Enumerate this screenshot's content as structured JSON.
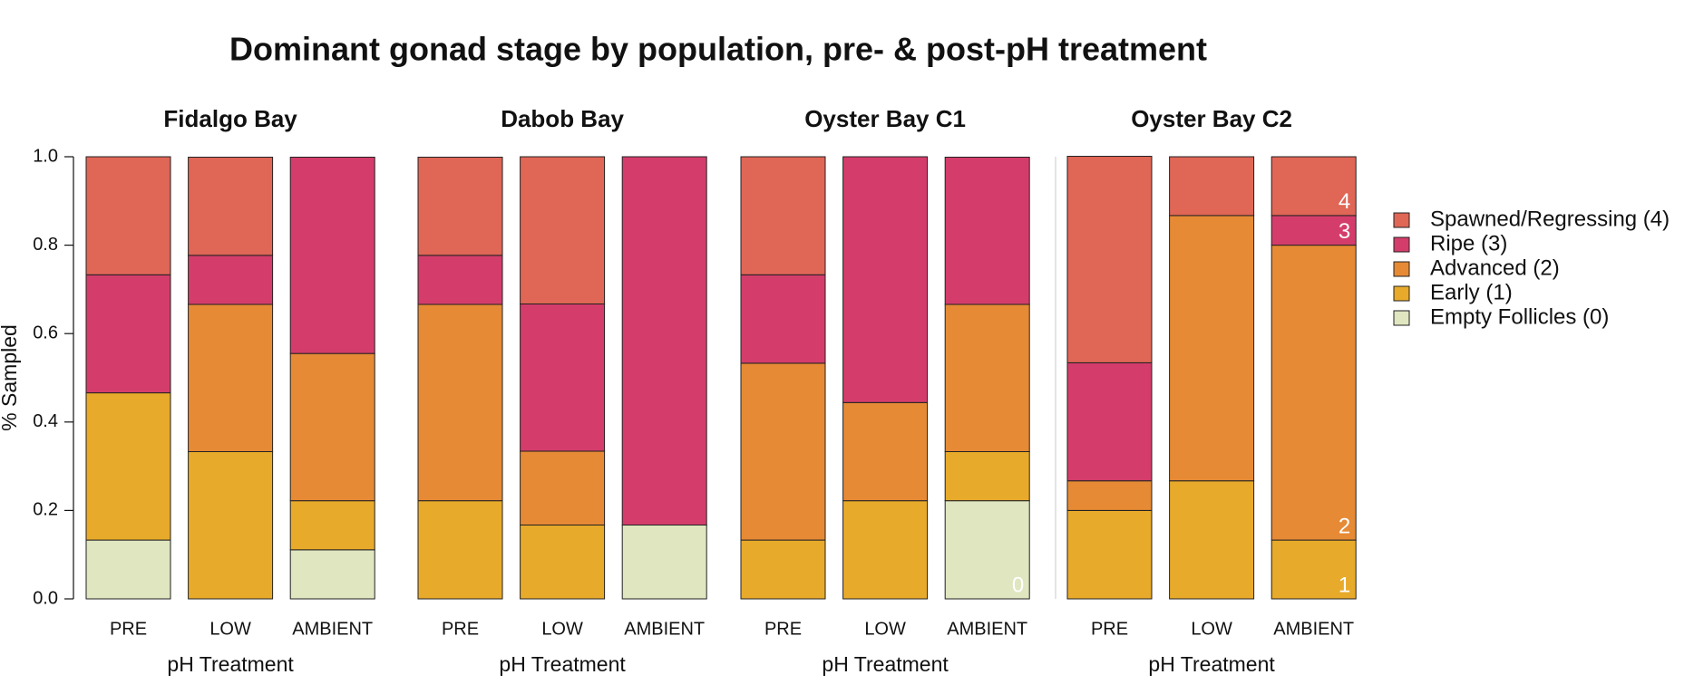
{
  "title": "Dominant gonad stage by population, pre- & post-pH treatment",
  "chart_data": [
    {
      "type": "bar",
      "stacked": true,
      "title": "Fidalgo Bay",
      "xlabel": "pH Treatment",
      "ylabel": "% Sampled",
      "categories": [
        "PRE",
        "LOW",
        "AMBIENT"
      ],
      "ylim": [
        0,
        1
      ],
      "yticks": [
        {
          "value": 0,
          "label": "0.0"
        },
        0.2,
        0.4,
        0.6,
        0.8,
        {
          "value": 1,
          "label": "1.0"
        }
      ],
      "series": [
        {
          "name": "Empty Follicles (0)",
          "color": "#dfe6c0",
          "values": [
            0.133,
            0,
            0.111
          ]
        },
        {
          "name": "Early (1)",
          "color": "#e8aa2a",
          "values": [
            0.333,
            0.333,
            0.111
          ]
        },
        {
          "name": "Advanced (2)",
          "color": "#e68a35",
          "values": [
            0,
            0.333,
            0.333
          ]
        },
        {
          "name": "Ripe (3)",
          "color": "#d43d6b",
          "values": [
            0.267,
            0.111,
            0.444
          ]
        },
        {
          "name": "Spawned/Regressing (4)",
          "color": "#e06656",
          "values": [
            0.267,
            0.222,
            0
          ]
        }
      ]
    },
    {
      "type": "bar",
      "stacked": true,
      "title": "Dabob Bay",
      "xlabel": "pH Treatment",
      "categories": [
        "PRE",
        "LOW",
        "AMBIENT"
      ],
      "ylim": [
        0,
        1
      ],
      "series": [
        {
          "name": "Empty Follicles (0)",
          "color": "#dfe6c0",
          "values": [
            0,
            0,
            0.167
          ]
        },
        {
          "name": "Early (1)",
          "color": "#e8aa2a",
          "values": [
            0.222,
            0.167,
            0
          ]
        },
        {
          "name": "Advanced (2)",
          "color": "#e68a35",
          "values": [
            0.444,
            0.167,
            0
          ]
        },
        {
          "name": "Ripe (3)",
          "color": "#d43d6b",
          "values": [
            0.111,
            0.333,
            0.833
          ]
        },
        {
          "name": "Spawned/Regressing (4)",
          "color": "#e06656",
          "values": [
            0.222,
            0.333,
            0
          ]
        }
      ]
    },
    {
      "type": "bar",
      "stacked": true,
      "title": "Oyster Bay C1",
      "xlabel": "pH Treatment",
      "categories": [
        "PRE",
        "LOW",
        "AMBIENT"
      ],
      "ylim": [
        0,
        1
      ],
      "series": [
        {
          "name": "Empty Follicles (0)",
          "color": "#dfe6c0",
          "values": [
            0,
            0,
            0.222
          ]
        },
        {
          "name": "Early (1)",
          "color": "#e8aa2a",
          "values": [
            0.133,
            0.222,
            0.111
          ]
        },
        {
          "name": "Advanced (2)",
          "color": "#e68a35",
          "values": [
            0.4,
            0.222,
            0.333
          ]
        },
        {
          "name": "Ripe (3)",
          "color": "#d43d6b",
          "values": [
            0.2,
            0.556,
            0.333
          ]
        },
        {
          "name": "Spawned/Regressing (4)",
          "color": "#e06656",
          "values": [
            0.267,
            0,
            0
          ]
        }
      ],
      "annotations": [
        {
          "text": "0",
          "category": 2,
          "series": 0
        }
      ]
    },
    {
      "type": "bar",
      "stacked": true,
      "title": "Oyster Bay C2",
      "xlabel": "pH Treatment",
      "categories": [
        "PRE",
        "LOW",
        "AMBIENT"
      ],
      "ylim": [
        0,
        1
      ],
      "series": [
        {
          "name": "Empty Follicles (0)",
          "color": "#dfe6c0",
          "values": [
            0,
            0,
            0
          ]
        },
        {
          "name": "Early (1)",
          "color": "#e8aa2a",
          "values": [
            0.2,
            0.267,
            0.133
          ]
        },
        {
          "name": "Advanced (2)",
          "color": "#e68a35",
          "values": [
            0.067,
            0.6,
            0.667
          ]
        },
        {
          "name": "Ripe (3)",
          "color": "#d43d6b",
          "values": [
            0.267,
            0,
            0.067
          ]
        },
        {
          "name": "Spawned/Regressing (4)",
          "color": "#e06656",
          "values": [
            0.467,
            0.133,
            0.133
          ]
        }
      ],
      "annotations": [
        {
          "text": "1",
          "category": 2,
          "series": 1
        },
        {
          "text": "2",
          "category": 2,
          "series": 2
        },
        {
          "text": "3",
          "category": 2,
          "series": 3
        },
        {
          "text": "4",
          "category": 2,
          "series": 4
        }
      ]
    }
  ]
}
